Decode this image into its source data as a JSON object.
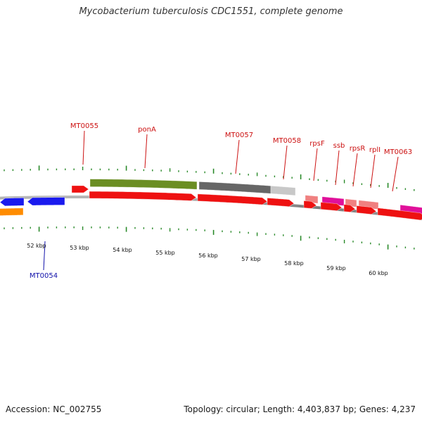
{
  "title": "Mycobacterium tuberculosis CDC1551, complete genome",
  "footer": {
    "accession": "Accession: NC_002755",
    "stats": "Topology: circular; Length: 4,403,837 bp; Genes: 4,237"
  },
  "colors": {
    "backbone": "#888888",
    "tick": "#2a8a2a",
    "label_forward": "#cc1111",
    "label_reverse": "#1111aa"
  },
  "scale_labels": [
    "52 kbp",
    "53 kbp",
    "54 kbp",
    "55 kbp",
    "56 kbp",
    "57 kbp",
    "58 kbp",
    "59 kbp",
    "60 kbp"
  ],
  "gene_labels": [
    {
      "text": "MT0055",
      "color": "#cc1111"
    },
    {
      "text": "ponA",
      "color": "#cc1111"
    },
    {
      "text": "MT0057",
      "color": "#cc1111"
    },
    {
      "text": "MT0058",
      "color": "#cc1111"
    },
    {
      "text": "rpsF",
      "color": "#cc1111"
    },
    {
      "text": "ssb",
      "color": "#cc1111"
    },
    {
      "text": "rpsR",
      "color": "#cc1111"
    },
    {
      "text": "rplI",
      "color": "#cc1111"
    },
    {
      "text": "MT0063",
      "color": "#cc1111"
    },
    {
      "text": "MT0054",
      "color": "#1111aa"
    }
  ],
  "features": [
    {
      "track": "outer2",
      "color": "#6b8e23",
      "shape": "bar"
    },
    {
      "track": "outer2",
      "color": "#666666",
      "shape": "bar"
    },
    {
      "track": "outer2",
      "color": "#c8c8c8",
      "shape": "bar"
    },
    {
      "track": "outer1",
      "color": "#ee1111",
      "shape": "arrow-right"
    },
    {
      "track": "outer1",
      "color": "#f08080",
      "shape": "bar"
    },
    {
      "track": "outer1",
      "color": "#e0109a",
      "shape": "bar"
    },
    {
      "track": "outer1",
      "color": "#f08080",
      "shape": "bar"
    },
    {
      "track": "outer1",
      "color": "#f08080",
      "shape": "bar"
    },
    {
      "track": "outer1",
      "color": "#e0109a",
      "shape": "bar"
    },
    {
      "track": "outer0",
      "color": "#ee1111",
      "shape": "arrow-right"
    },
    {
      "track": "outer0",
      "color": "#ee1111",
      "shape": "arrow-right"
    },
    {
      "track": "outer0",
      "color": "#ee1111",
      "shape": "arrow-right"
    },
    {
      "track": "outer0",
      "color": "#ee1111",
      "shape": "arrow-right"
    },
    {
      "track": "outer0",
      "color": "#ee1111",
      "shape": "arrow-right"
    },
    {
      "track": "outer0",
      "color": "#ee1111",
      "shape": "arrow-right"
    },
    {
      "track": "outer0",
      "color": "#ee1111",
      "shape": "arrow-right"
    },
    {
      "track": "outer0",
      "color": "#ee1111",
      "shape": "arrow-right"
    },
    {
      "track": "inner0",
      "color": "#1a1aee",
      "shape": "arrow-left"
    },
    {
      "track": "inner0",
      "color": "#1a1aee",
      "shape": "arrow-left"
    },
    {
      "track": "inner1",
      "color": "#ff8c00",
      "shape": "bar"
    }
  ]
}
